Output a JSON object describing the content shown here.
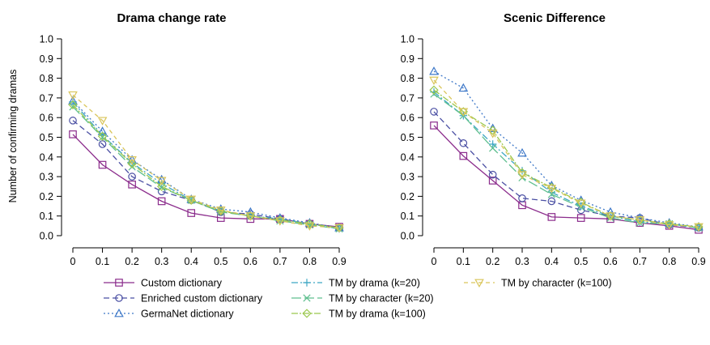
{
  "chart_data": [
    {
      "type": "line",
      "title": "Drama change rate",
      "ylabel": "Number of confirming dramas",
      "xlabel": "",
      "ylim": [
        0,
        1
      ],
      "xlim": [
        0,
        0.9
      ],
      "x": [
        0,
        0.1,
        0.2,
        0.3,
        0.4,
        0.5,
        0.6,
        0.7,
        0.8,
        0.9
      ],
      "x_ticks": [
        "0",
        "0.1",
        "0.2",
        "0.3",
        "0.4",
        "0.5",
        "0.6",
        "0.7",
        "0.8",
        "0.9"
      ],
      "y_ticks": [
        "0.0",
        "0.1",
        "0.2",
        "0.3",
        "0.4",
        "0.5",
        "0.6",
        "0.7",
        "0.8",
        "0.9",
        "1.0"
      ],
      "series": [
        {
          "name": "Custom dictionary",
          "values": [
            0.515,
            0.36,
            0.26,
            0.175,
            0.115,
            0.09,
            0.085,
            0.085,
            0.06,
            0.045
          ]
        },
        {
          "name": "Enriched custom dictionary",
          "values": [
            0.585,
            0.465,
            0.3,
            0.225,
            0.18,
            0.12,
            0.11,
            0.085,
            0.06,
            0.04
          ]
        },
        {
          "name": "GermaNet dictionary",
          "values": [
            0.685,
            0.53,
            0.385,
            0.285,
            0.185,
            0.135,
            0.12,
            0.09,
            0.065,
            0.04
          ]
        },
        {
          "name": "TM by drama (k=20)",
          "values": [
            0.68,
            0.51,
            0.37,
            0.265,
            0.18,
            0.125,
            0.1,
            0.085,
            0.06,
            0.035
          ]
        },
        {
          "name": "TM by character (k=20)",
          "values": [
            0.655,
            0.5,
            0.35,
            0.245,
            0.18,
            0.12,
            0.1,
            0.075,
            0.055,
            0.035
          ]
        },
        {
          "name": "TM by drama (k=100)",
          "values": [
            0.665,
            0.505,
            0.365,
            0.25,
            0.18,
            0.125,
            0.1,
            0.08,
            0.06,
            0.04
          ]
        },
        {
          "name": "TM by character (k=100)",
          "values": [
            0.715,
            0.585,
            0.385,
            0.28,
            0.185,
            0.13,
            0.1,
            0.075,
            0.05,
            0.04
          ]
        }
      ]
    },
    {
      "type": "line",
      "title": "Scenic Difference",
      "ylabel": "",
      "xlabel": "",
      "ylim": [
        0,
        1
      ],
      "xlim": [
        0,
        0.9
      ],
      "x": [
        0,
        0.1,
        0.2,
        0.3,
        0.4,
        0.5,
        0.6,
        0.7,
        0.8,
        0.9
      ],
      "x_ticks": [
        "0",
        "0.1",
        "0.2",
        "0.3",
        "0.4",
        "0.5",
        "0.6",
        "0.7",
        "0.8",
        "0.9"
      ],
      "y_ticks": [
        "0.0",
        "0.1",
        "0.2",
        "0.3",
        "0.4",
        "0.5",
        "0.6",
        "0.7",
        "0.8",
        "0.9",
        "1.0"
      ],
      "series": [
        {
          "name": "Custom dictionary",
          "values": [
            0.56,
            0.405,
            0.28,
            0.155,
            0.095,
            0.09,
            0.085,
            0.065,
            0.05,
            0.03
          ]
        },
        {
          "name": "Enriched custom dictionary",
          "values": [
            0.63,
            0.47,
            0.31,
            0.19,
            0.175,
            0.13,
            0.1,
            0.09,
            0.055,
            0.04
          ]
        },
        {
          "name": "GermaNet dictionary",
          "values": [
            0.835,
            0.75,
            0.545,
            0.42,
            0.255,
            0.18,
            0.12,
            0.09,
            0.065,
            0.045
          ]
        },
        {
          "name": "TM by drama (k=20)",
          "values": [
            0.73,
            0.61,
            0.465,
            0.33,
            0.22,
            0.15,
            0.1,
            0.07,
            0.06,
            0.04
          ]
        },
        {
          "name": "TM by character (k=20)",
          "values": [
            0.72,
            0.61,
            0.445,
            0.295,
            0.21,
            0.145,
            0.09,
            0.065,
            0.06,
            0.04
          ]
        },
        {
          "name": "TM by drama (k=100)",
          "values": [
            0.74,
            0.63,
            0.535,
            0.32,
            0.245,
            0.17,
            0.1,
            0.08,
            0.06,
            0.045
          ]
        },
        {
          "name": "TM by character (k=100)",
          "values": [
            0.79,
            0.63,
            0.52,
            0.31,
            0.24,
            0.165,
            0.1,
            0.08,
            0.055,
            0.045
          ]
        }
      ]
    }
  ],
  "series_style": [
    {
      "color": "#8B2C8C",
      "dash": "",
      "marker": "square"
    },
    {
      "color": "#4A4FA3",
      "dash": "7,4",
      "marker": "circle"
    },
    {
      "color": "#3E78C8",
      "dash": "2,3",
      "marker": "triangle-up"
    },
    {
      "color": "#3EA6C4",
      "dash": "8,3,2,3",
      "marker": "plus"
    },
    {
      "color": "#5FBF8F",
      "dash": "12,4",
      "marker": "cross"
    },
    {
      "color": "#9BC84E",
      "dash": "8,2,2,2",
      "marker": "diamond"
    },
    {
      "color": "#D9C55A",
      "dash": "5,4",
      "marker": "triangle-down"
    }
  ],
  "legend": {
    "placement": "bottom",
    "columns": [
      [
        "Custom dictionary",
        "Enriched custom dictionary",
        "GermaNet dictionary"
      ],
      [
        "TM by drama (k=20)",
        "TM by character (k=20)",
        "TM by drama (k=100)"
      ],
      [
        "TM by character (k=100)"
      ]
    ]
  }
}
